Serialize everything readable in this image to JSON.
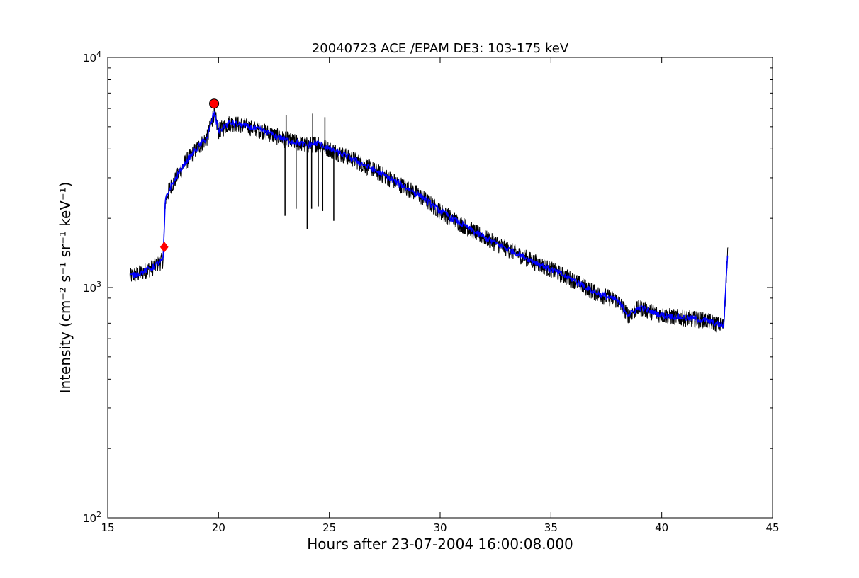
{
  "chart_data": {
    "type": "line",
    "title": "20040723 ACE /EPAM DE3: 103-175 keV",
    "xlabel": "Hours after 23-07-2004 16:00:08.000",
    "ylabel": "Intensity (cm⁻² s⁻¹ sr⁻¹ keV⁻¹)",
    "xlim": [
      15,
      45
    ],
    "ylim": [
      100,
      10000
    ],
    "yscale": "log",
    "grid": false,
    "x_ticks": [
      "15",
      "20",
      "25",
      "30",
      "35",
      "40",
      "45"
    ],
    "x_tick_values": [
      15,
      20,
      25,
      30,
      35,
      40,
      45
    ],
    "y_ticks": [
      {
        "value": 100,
        "base": "10",
        "exp": "2"
      },
      {
        "value": 1000,
        "base": "10",
        "exp": "3"
      },
      {
        "value": 10000,
        "base": "10",
        "exp": "4"
      }
    ],
    "series": [
      {
        "color": "#000000",
        "x": [
          16.0,
          16.5,
          17.0,
          17.5,
          17.6,
          17.8,
          18.0,
          18.5,
          19.0,
          19.5,
          19.8,
          20.0,
          20.5,
          21.0,
          22.0,
          23.0,
          24.0,
          24.5,
          25.0,
          26.0,
          27.0,
          28.0,
          29.0,
          30.0,
          31.0,
          32.0,
          33.0,
          34.0,
          35.0,
          36.0,
          37.0,
          38.0,
          38.5,
          39.0,
          40.0,
          41.0,
          42.0,
          42.8,
          43.0
        ],
        "y": [
          1120,
          1160,
          1220,
          1320,
          2400,
          2700,
          2900,
          3500,
          4000,
          4500,
          5800,
          4800,
          5200,
          5100,
          4800,
          4400,
          4150,
          4250,
          4000,
          3650,
          3250,
          2880,
          2550,
          2150,
          1880,
          1650,
          1480,
          1330,
          1200,
          1080,
          950,
          880,
          760,
          820,
          760,
          740,
          720,
          680,
          1600
        ],
        "spikes": [
          {
            "x": 23.0,
            "y": 2050
          },
          {
            "x": 23.05,
            "y": 5600
          },
          {
            "x": 23.5,
            "y": 2200
          },
          {
            "x": 24.0,
            "y": 1800
          },
          {
            "x": 24.2,
            "y": 2200
          },
          {
            "x": 24.25,
            "y": 5700
          },
          {
            "x": 24.5,
            "y": 2250
          },
          {
            "x": 24.7,
            "y": 2150
          },
          {
            "x": 24.8,
            "y": 5500
          },
          {
            "x": 25.2,
            "y": 1950
          }
        ]
      },
      {
        "color": "#0000ff",
        "x": [
          16.0,
          16.5,
          17.0,
          17.5,
          17.6,
          17.8,
          18.0,
          18.5,
          19.0,
          19.5,
          19.8,
          20.0,
          20.5,
          21.0,
          22.0,
          23.0,
          24.0,
          24.5,
          25.0,
          26.0,
          27.0,
          28.0,
          29.0,
          30.0,
          31.0,
          32.0,
          33.0,
          34.0,
          35.0,
          36.0,
          37.0,
          38.0,
          38.5,
          39.0,
          40.0,
          41.0,
          42.0,
          42.8,
          43.0
        ],
        "y": [
          1120,
          1160,
          1220,
          1320,
          2400,
          2700,
          2900,
          3500,
          4000,
          4500,
          5800,
          4800,
          5200,
          5100,
          4800,
          4400,
          4150,
          4250,
          4000,
          3650,
          3250,
          2880,
          2550,
          2150,
          1880,
          1650,
          1480,
          1330,
          1200,
          1080,
          950,
          880,
          760,
          820,
          760,
          740,
          720,
          680,
          1600
        ]
      }
    ],
    "markers": [
      {
        "shape": "diamond",
        "x": 17.55,
        "y": 1500,
        "color": "#ff0000"
      },
      {
        "shape": "circle",
        "x": 19.8,
        "y": 6300,
        "color": "#ff0000"
      }
    ]
  }
}
